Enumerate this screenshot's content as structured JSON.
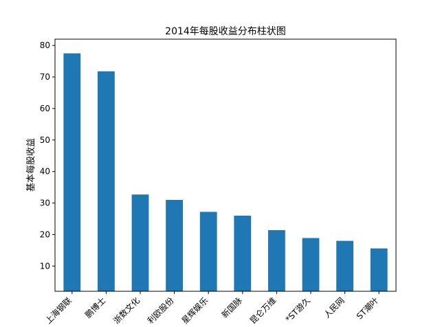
{
  "chart_data": {
    "type": "bar",
    "title": "2014年每股收益分布柱状图",
    "xlabel": "",
    "ylabel": "基本每股收益",
    "categories": [
      "上海钢联",
      "鹏博士",
      "浙数文化",
      "利欧股份",
      "星辉娱乐",
      "新国脉",
      "昆仑万维",
      "*ST游久",
      "人民网",
      "ST潮叶"
    ],
    "values": [
      77.5,
      71.8,
      32.7,
      31.0,
      27.2,
      26.0,
      21.4,
      18.9,
      18.0,
      15.6
    ],
    "ylim": [
      2,
      82
    ],
    "yticks": [
      10,
      20,
      30,
      40,
      50,
      60,
      70,
      80
    ],
    "bar_color": "#1f77b4",
    "grid": false,
    "legend": "none"
  }
}
